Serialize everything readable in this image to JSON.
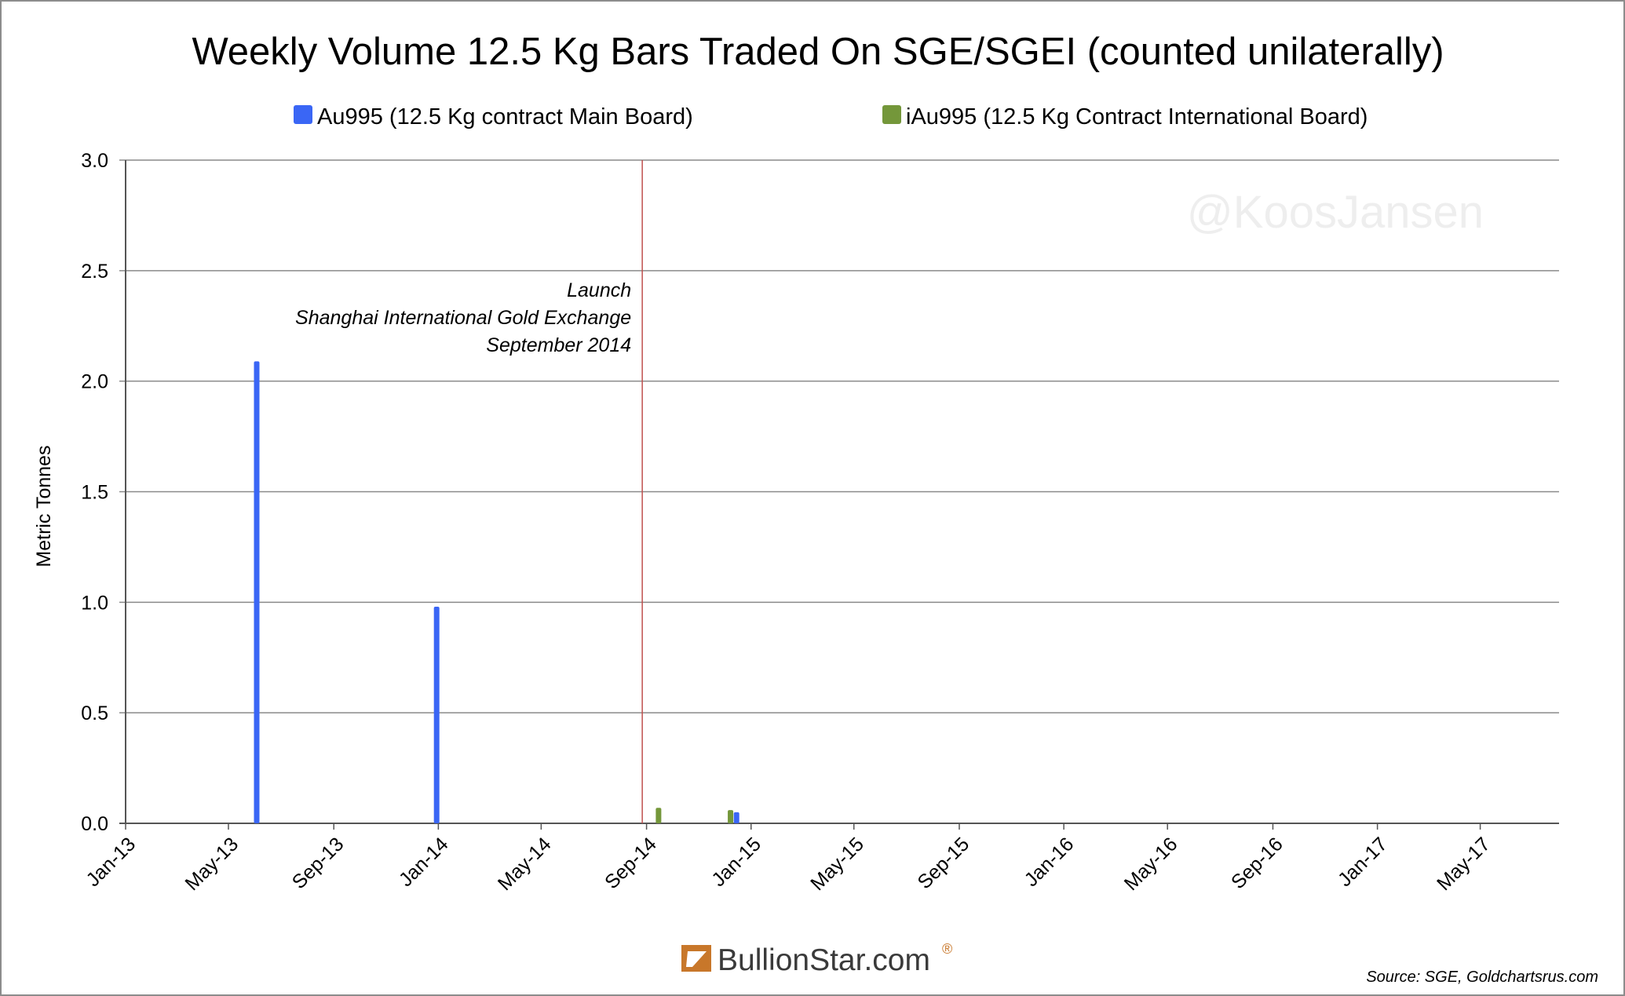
{
  "chart_data": {
    "type": "bar",
    "title": "Weekly Volume 12.5 Kg Bars Traded On SGE/SGEI (counted unilaterally)",
    "ylabel": "Metric Tonnes",
    "xlabel": "",
    "ylim": [
      0,
      3.0
    ],
    "yticks": [
      "0.0",
      "0.5",
      "1.0",
      "1.5",
      "2.0",
      "2.5",
      "3.0"
    ],
    "xlim": [
      "2013-01-01",
      "2017-08-01"
    ],
    "xticks": [
      {
        "label": "Jan-13",
        "date": "2013-01-01"
      },
      {
        "label": "May-13",
        "date": "2013-05-01"
      },
      {
        "label": "Sep-13",
        "date": "2013-09-01"
      },
      {
        "label": "Jan-14",
        "date": "2014-01-01"
      },
      {
        "label": "May-14",
        "date": "2014-05-01"
      },
      {
        "label": "Sep-14",
        "date": "2014-09-01"
      },
      {
        "label": "Jan-15",
        "date": "2015-01-01"
      },
      {
        "label": "May-15",
        "date": "2015-05-01"
      },
      {
        "label": "Sep-15",
        "date": "2015-09-01"
      },
      {
        "label": "Jan-16",
        "date": "2016-01-01"
      },
      {
        "label": "May-16",
        "date": "2016-05-01"
      },
      {
        "label": "Sep-16",
        "date": "2016-09-01"
      },
      {
        "label": "Jan-17",
        "date": "2017-01-01"
      },
      {
        "label": "May-17",
        "date": "2017-05-01"
      }
    ],
    "grid": true,
    "legend_position": "top",
    "series": [
      {
        "name": "Au995 (12.5 Kg contract Main Board)",
        "color": "#3a66f5",
        "points": [
          {
            "date": "2013-06-03",
            "value": 2.09
          },
          {
            "date": "2013-12-30",
            "value": 0.98
          },
          {
            "date": "2014-12-15",
            "value": 0.05
          }
        ]
      },
      {
        "name": "iAu995 (12.5 Kg Contract International Board)",
        "color": "#74973a",
        "points": [
          {
            "date": "2014-09-15",
            "value": 0.07
          },
          {
            "date": "2014-12-08",
            "value": 0.06
          }
        ]
      }
    ],
    "annotations": [
      {
        "date": "2014-08-27",
        "lines": [
          "Launch",
          "Shanghai International Gold Exchange",
          "September 2014"
        ],
        "line_color": "#c0504d"
      }
    ]
  },
  "watermark": "@KoosJansen",
  "source": "Source: SGE, Goldchartsrus.com",
  "logo": {
    "text": "BullionStar.com",
    "mark": "®"
  }
}
